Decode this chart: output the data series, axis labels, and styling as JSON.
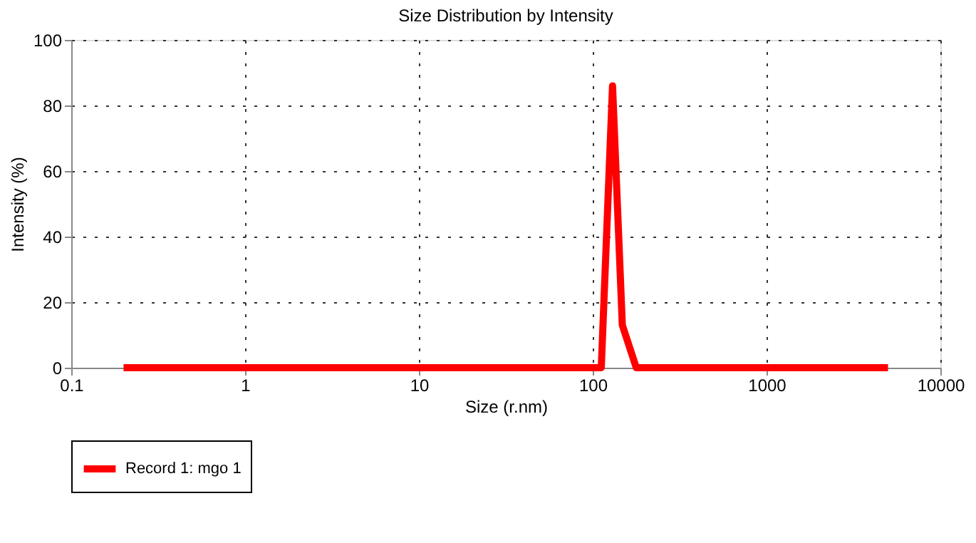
{
  "chart_data": {
    "type": "line",
    "title": "Size Distribution by Intensity",
    "xlabel": "Size (r.nm)",
    "ylabel": "Intensity (%)",
    "log": "x",
    "xlim": [
      0.1,
      10000
    ],
    "xticks": [
      0.1,
      1,
      10,
      100,
      1000,
      10000
    ],
    "ylim": [
      0,
      100
    ],
    "yticks": [
      0,
      20,
      40,
      60,
      80,
      100
    ],
    "grid": true,
    "legend": "bottom",
    "line_style": "solid",
    "series": [
      {
        "name": "Record 1: mgo 1",
        "color": "#ff0000",
        "x": [
          0.2,
          112,
          130,
          148,
          178,
          5000
        ],
        "values": [
          0,
          0,
          86,
          13,
          0,
          0
        ]
      }
    ]
  }
}
